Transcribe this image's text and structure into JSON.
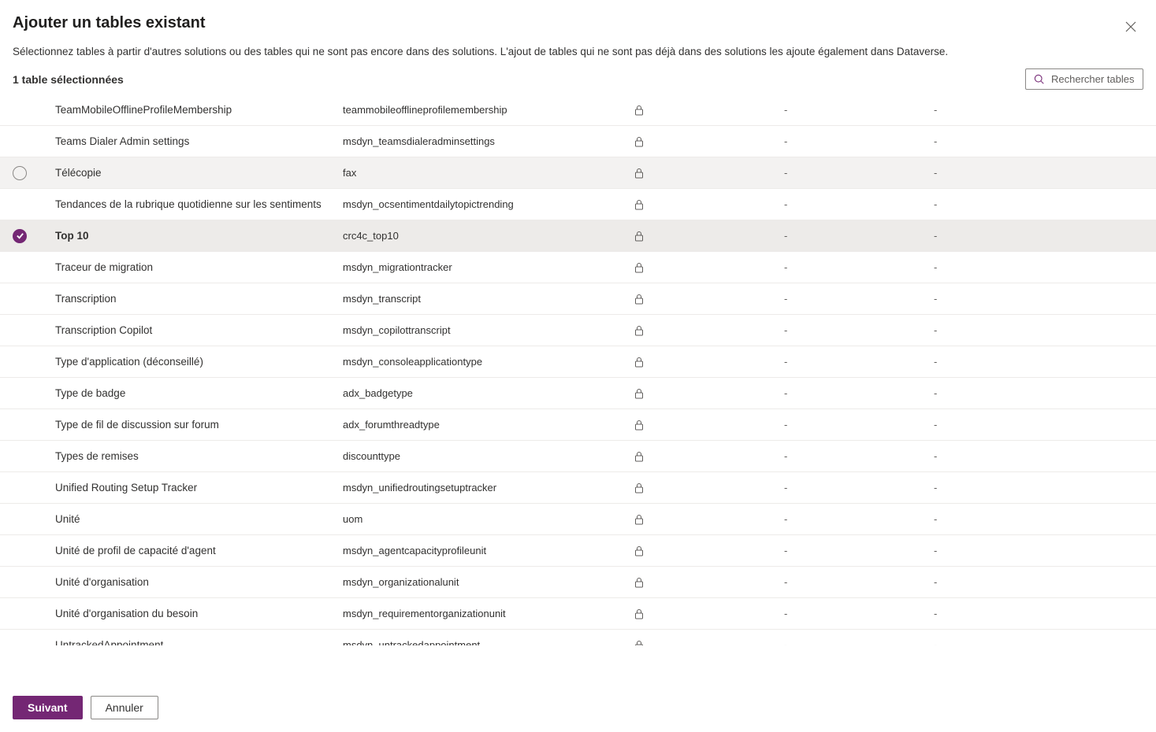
{
  "dialog": {
    "title": "Ajouter un tables existant",
    "subtitle": "Sélectionnez tables à partir d'autres solutions ou des tables qui ne sont pas encore dans des solutions. L'ajout de tables qui ne sont pas déjà dans des solutions les ajoute également dans Dataverse.",
    "selection_count": "1 table sélectionnées",
    "search_placeholder": "Rechercher tables"
  },
  "rows": [
    {
      "name": "TeamMobileOfflineProfileMembership",
      "schema": "teammobileofflineprofilemembership",
      "locked": true,
      "c1": "-",
      "c2": "-",
      "state": ""
    },
    {
      "name": "Teams Dialer Admin settings",
      "schema": "msdyn_teamsdialeradminsettings",
      "locked": true,
      "c1": "-",
      "c2": "-",
      "state": ""
    },
    {
      "name": "Télécopie",
      "schema": "fax",
      "locked": true,
      "c1": "-",
      "c2": "-",
      "state": "hover"
    },
    {
      "name": "Tendances de la rubrique quotidienne sur les sentiments",
      "schema": "msdyn_ocsentimentdailytopictrending",
      "locked": true,
      "c1": "-",
      "c2": "-",
      "state": ""
    },
    {
      "name": "Top 10",
      "schema": "crc4c_top10",
      "locked": true,
      "c1": "-",
      "c2": "-",
      "state": "selected"
    },
    {
      "name": "Traceur de migration",
      "schema": "msdyn_migrationtracker",
      "locked": true,
      "c1": "-",
      "c2": "-",
      "state": ""
    },
    {
      "name": "Transcription",
      "schema": "msdyn_transcript",
      "locked": true,
      "c1": "-",
      "c2": "-",
      "state": ""
    },
    {
      "name": "Transcription Copilot",
      "schema": "msdyn_copilottranscript",
      "locked": true,
      "c1": "-",
      "c2": "-",
      "state": ""
    },
    {
      "name": "Type d'application (déconseillé)",
      "schema": "msdyn_consoleapplicationtype",
      "locked": true,
      "c1": "-",
      "c2": "-",
      "state": ""
    },
    {
      "name": "Type de badge",
      "schema": "adx_badgetype",
      "locked": true,
      "c1": "-",
      "c2": "-",
      "state": ""
    },
    {
      "name": "Type de fil de discussion sur forum",
      "schema": "adx_forumthreadtype",
      "locked": true,
      "c1": "-",
      "c2": "-",
      "state": ""
    },
    {
      "name": "Types de remises",
      "schema": "discounttype",
      "locked": true,
      "c1": "-",
      "c2": "-",
      "state": ""
    },
    {
      "name": "Unified Routing Setup Tracker",
      "schema": "msdyn_unifiedroutingsetuptracker",
      "locked": true,
      "c1": "-",
      "c2": "-",
      "state": ""
    },
    {
      "name": "Unité",
      "schema": "uom",
      "locked": true,
      "c1": "-",
      "c2": "-",
      "state": ""
    },
    {
      "name": "Unité de profil de capacité d'agent",
      "schema": "msdyn_agentcapacityprofileunit",
      "locked": true,
      "c1": "-",
      "c2": "-",
      "state": ""
    },
    {
      "name": "Unité d'organisation",
      "schema": "msdyn_organizationalunit",
      "locked": true,
      "c1": "-",
      "c2": "-",
      "state": ""
    },
    {
      "name": "Unité d'organisation du besoin",
      "schema": "msdyn_requirementorganizationunit",
      "locked": true,
      "c1": "-",
      "c2": "-",
      "state": ""
    },
    {
      "name": "UntrackedAppointment",
      "schema": "msdyn_untrackedappointment",
      "locked": true,
      "c1": "-",
      "c2": "-",
      "state": ""
    }
  ],
  "footer": {
    "primary_label": "Suivant",
    "secondary_label": "Annuler"
  },
  "colors": {
    "primary": "#742774",
    "text": "#323130",
    "border": "#edebe9",
    "hover": "#f3f2f1",
    "selected": "#edebe9"
  }
}
